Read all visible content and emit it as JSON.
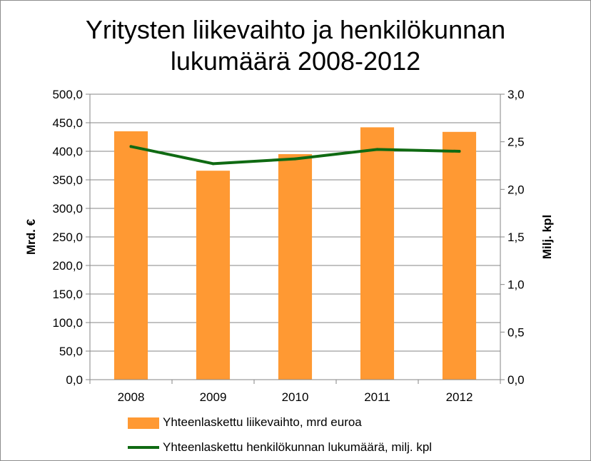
{
  "chart_data": {
    "type": "bar",
    "title_line1": "Yritysten liikevaihto ja henkilökunnan",
    "title_line2": "lukumäärä 2008-2012",
    "categories": [
      "2008",
      "2009",
      "2010",
      "2011",
      "2012"
    ],
    "y_left": {
      "label": "Mrd. €",
      "ylim": [
        0,
        500
      ],
      "ticks": [
        "0,0",
        "50,0",
        "100,0",
        "150,0",
        "200,0",
        "250,0",
        "300,0",
        "350,0",
        "400,0",
        "450,0",
        "500,0"
      ]
    },
    "y_right": {
      "label": "Milj. kpl",
      "ylim": [
        0,
        3
      ],
      "ticks": [
        "0,0",
        "0,5",
        "1,0",
        "1,5",
        "2,0",
        "2,5",
        "3,0"
      ]
    },
    "series": [
      {
        "name": "Yhteenlaskettu liikevaihto, mrd  euroa",
        "type": "bar",
        "axis": "left",
        "color": "#ff9933",
        "values": [
          435,
          366,
          395,
          442,
          434
        ]
      },
      {
        "name": "Yhteenlaskettu henkilökunnan lukumäärä, milj. kpl",
        "type": "line",
        "axis": "right",
        "color": "#0f6a12",
        "values": [
          2.45,
          2.27,
          2.32,
          2.42,
          2.4
        ]
      }
    ],
    "grid": true,
    "legend": "bottom"
  }
}
